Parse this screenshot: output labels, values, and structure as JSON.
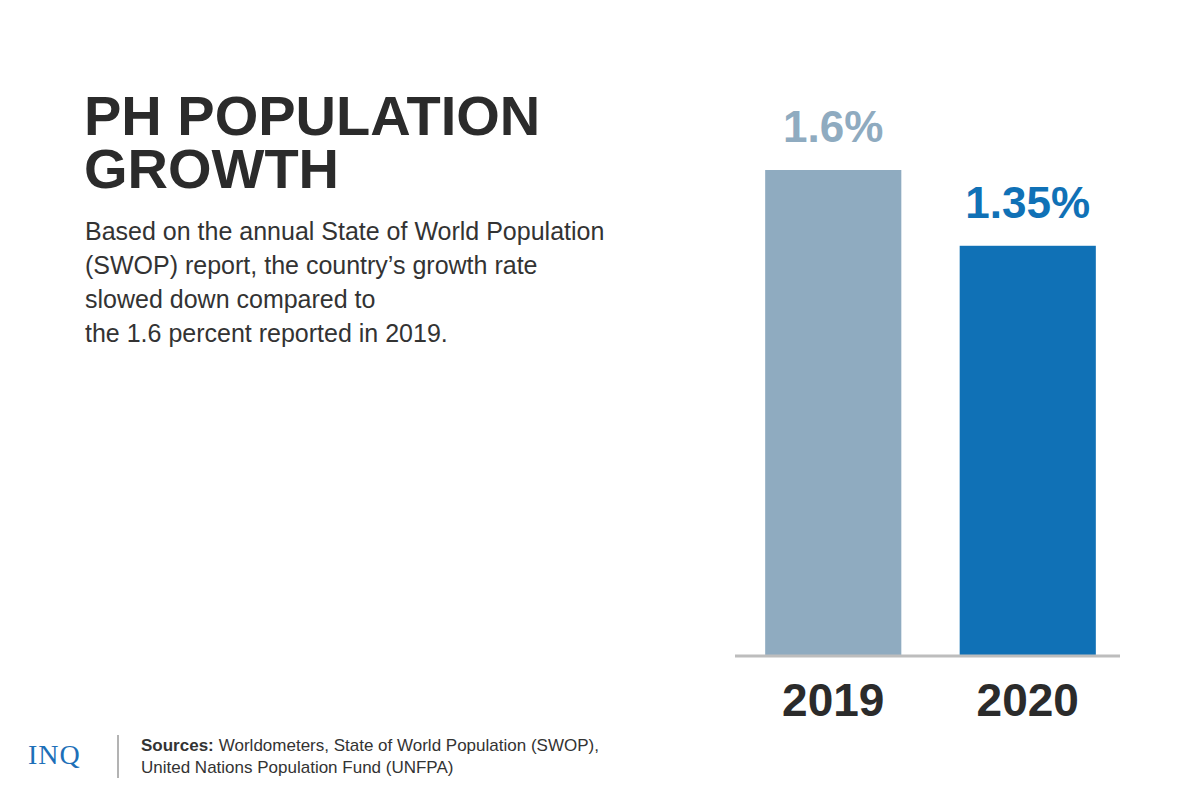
{
  "chart_data": {
    "type": "bar",
    "title": "PH POPULATION GROWTH",
    "subtitle": [
      "Based on the annual State of World Population",
      "(SWOP) report, the country’s growth rate",
      "slowed down compared to",
      "the 1.6 percent reported in 2019."
    ],
    "categories": [
      "2019",
      "2020"
    ],
    "values": [
      1.6,
      1.35
    ],
    "value_labels": [
      "1.6%",
      "1.35%"
    ],
    "colors": [
      "#8fabc0",
      "#1071b6"
    ],
    "ylim": [
      0,
      1.6
    ],
    "data_labels": true,
    "tick_labels": "x",
    "grid": false,
    "brand": "INQ",
    "source_label": "Sources:",
    "source_lines": [
      "Worldometers, State of World Population (SWOP),",
      "United Nations Population Fund (UNFPA)"
    ]
  }
}
